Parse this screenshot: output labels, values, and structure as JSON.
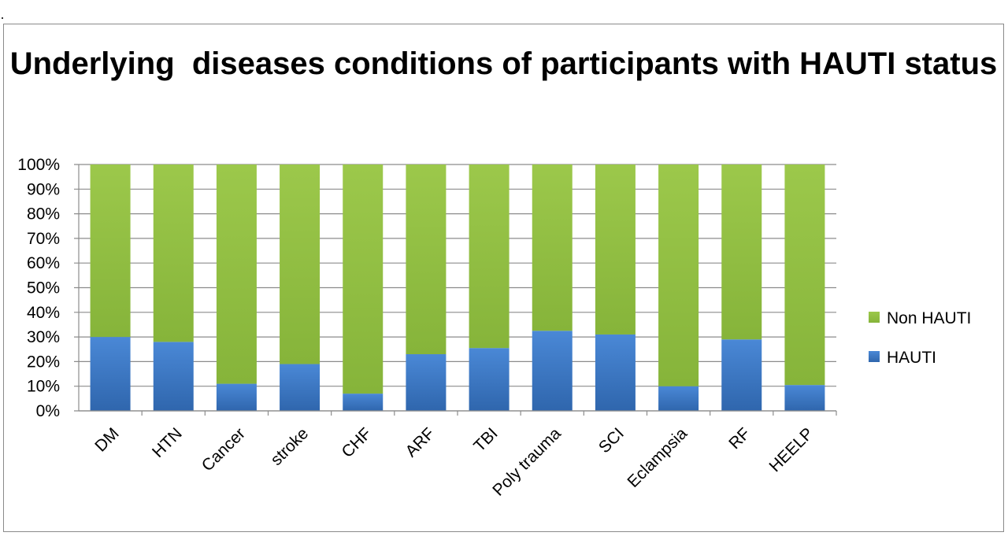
{
  "chart_data": {
    "type": "bar",
    "stacked": true,
    "percent_stacked": true,
    "title": "Underlying  diseases conditions of participants with HAUTI status",
    "xlabel": "",
    "ylabel": "",
    "ylim": [
      0,
      100
    ],
    "y_ticks": [
      "0%",
      "10%",
      "20%",
      "30%",
      "40%",
      "50%",
      "60%",
      "70%",
      "80%",
      "90%",
      "100%"
    ],
    "grid": true,
    "legend_position": "right",
    "categories": [
      "DM",
      "HTN",
      "Cancer",
      "stroke",
      "CHF",
      "ARF",
      "TBI",
      "Poly trauma",
      "SCI",
      "Eclampsia",
      "RF",
      "HEELP"
    ],
    "series": [
      {
        "name": "HAUTI",
        "color": "#3a78c8",
        "values": [
          30,
          28,
          11,
          19,
          7,
          23,
          25.5,
          32.5,
          31,
          10,
          29,
          10.5
        ]
      },
      {
        "name": "Non HAUTI",
        "color": "#93bf43",
        "values": [
          70,
          72,
          89,
          81,
          93,
          77,
          74.5,
          67.5,
          69,
          90,
          71,
          89.5
        ]
      }
    ],
    "legend": [
      {
        "name": "Non HAUTI",
        "color": "#93bf43"
      },
      {
        "name": "HAUTI",
        "color": "#3a78c8"
      }
    ]
  }
}
